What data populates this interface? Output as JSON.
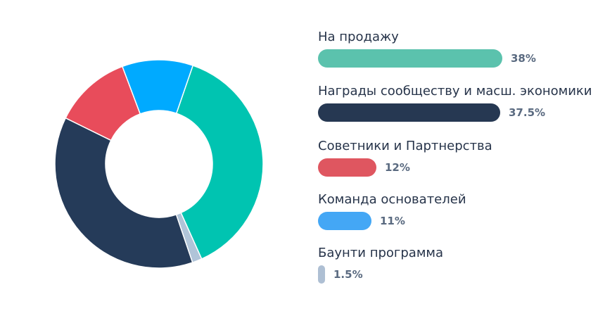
{
  "chart_data": {
    "type": "pie",
    "title": "",
    "slices": [
      {
        "name": "На продажу",
        "value": 38,
        "label": "38%",
        "color": "#00c4b1",
        "bar_color": "#5bc2ad"
      },
      {
        "name": "Награды сообществу и масш. экономики",
        "value": 37.5,
        "label": "37.5%",
        "color": "#253b59",
        "bar_color": "#263852"
      },
      {
        "name": "Советники и Партнерства",
        "value": 12,
        "label": "12%",
        "color": "#e84c5b",
        "bar_color": "#df5660"
      },
      {
        "name": "Команда основателей",
        "value": 11,
        "label": "11%",
        "color": "#00aaff",
        "bar_color": "#44a7f5"
      },
      {
        "name": "Баунти программа",
        "value": 1.5,
        "label": "1.5%",
        "color": "#b0c4d8",
        "bar_color": "#aebfd3"
      }
    ]
  }
}
